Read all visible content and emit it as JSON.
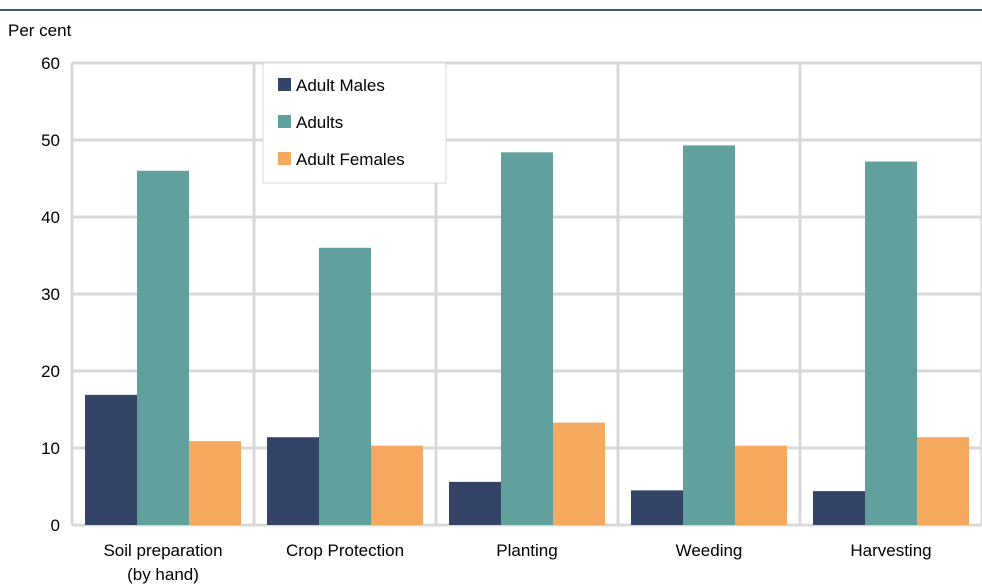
{
  "chart_data": {
    "type": "bar",
    "unit_label": "Per cent",
    "categories": [
      [
        "Soil preparation",
        "(by hand)"
      ],
      [
        "Crop Protection"
      ],
      [
        "Planting"
      ],
      [
        "Weeding"
      ],
      [
        "Harvesting"
      ]
    ],
    "series": [
      {
        "name": "Adult Males",
        "color": "#334466",
        "values": [
          16.9,
          11.4,
          5.6,
          4.5,
          4.4
        ]
      },
      {
        "name": "Adults",
        "color": "#62a09e",
        "values": [
          46.0,
          36.0,
          48.4,
          49.3,
          47.2
        ]
      },
      {
        "name": "Adult Females",
        "color": "#f5a95e",
        "values": [
          10.9,
          10.3,
          13.3,
          10.3,
          11.4
        ]
      }
    ],
    "ylim": [
      0,
      60
    ],
    "yticks": [
      0,
      10,
      20,
      30,
      40,
      50,
      60
    ],
    "grid": true,
    "legend_position": "top-left"
  },
  "colors": {
    "top_rule": "#3f5877",
    "grid": "#d9d9d9",
    "plot_border": "#d9d9d9"
  }
}
